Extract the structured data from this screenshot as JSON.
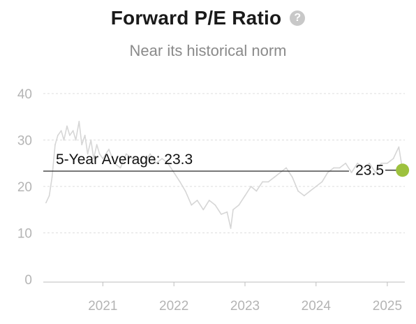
{
  "header": {
    "title": "Forward P/E Ratio",
    "help_icon": "?",
    "subtitle": "Near its historical norm"
  },
  "colors": {
    "series": "#d6d6d6",
    "average_line": "#111111",
    "current_marker": "#9dc13e",
    "grid": "#dddddd",
    "tick_text": "#b4b4b4"
  },
  "chart_data": {
    "type": "line",
    "title": "Forward P/E Ratio",
    "subtitle": "Near its historical norm",
    "xlabel": "",
    "ylabel": "",
    "ylim": [
      0,
      40
    ],
    "xlim": [
      "2020-03-01",
      "2025-04-01"
    ],
    "y_ticks": [
      "0",
      "10",
      "20",
      "30",
      "40"
    ],
    "x_ticks": [
      "2021",
      "2022",
      "2023",
      "2024",
      "2025"
    ],
    "grid": "horizontal dashed",
    "series": [
      {
        "x": [
          "2020-03-15",
          "2020-04-01",
          "2020-04-15",
          "2020-05-01",
          "2020-05-15",
          "2020-06-01",
          "2020-06-15",
          "2020-07-01",
          "2020-07-15",
          "2020-08-01",
          "2020-08-15",
          "2020-09-01",
          "2020-09-15",
          "2020-10-01",
          "2020-10-15",
          "2020-11-01",
          "2020-11-15",
          "2020-12-01",
          "2020-12-15",
          "2021-01-01",
          "2021-02-01",
          "2021-03-01",
          "2021-04-01",
          "2021-05-01",
          "2021-06-01",
          "2021-07-01",
          "2021-08-01",
          "2021-09-01",
          "2021-10-01",
          "2021-11-01",
          "2021-12-01",
          "2022-01-01",
          "2022-02-01",
          "2022-03-01",
          "2022-04-01",
          "2022-05-01",
          "2022-06-01",
          "2022-07-01",
          "2022-08-01",
          "2022-09-01",
          "2022-10-01",
          "2022-10-20",
          "2022-11-01",
          "2022-12-01",
          "2023-01-01",
          "2023-02-01",
          "2023-03-01",
          "2023-04-01",
          "2023-05-01",
          "2023-06-01",
          "2023-07-01",
          "2023-08-01",
          "2023-09-01",
          "2023-10-01",
          "2023-11-01",
          "2023-12-01",
          "2024-01-01",
          "2024-02-01",
          "2024-03-01",
          "2024-04-01",
          "2024-05-01",
          "2024-06-01",
          "2024-07-01",
          "2024-08-01",
          "2024-09-01",
          "2024-10-01",
          "2024-11-01",
          "2024-12-01",
          "2025-01-01",
          "2025-02-01",
          "2025-03-01",
          "2025-03-20"
        ],
        "values": [
          16.5,
          18,
          22,
          29,
          31,
          32,
          30,
          33,
          31,
          32,
          30,
          34,
          29,
          31,
          27,
          30,
          26,
          29,
          27,
          26,
          28,
          25,
          24,
          27,
          26,
          26,
          25,
          27,
          25,
          26,
          25,
          23,
          21,
          19,
          16,
          17,
          15,
          17,
          16,
          14,
          14.5,
          11,
          15,
          16,
          18,
          20,
          19,
          21,
          21,
          22,
          23,
          24,
          22,
          19,
          18,
          19,
          20,
          21,
          23,
          24,
          24,
          25,
          23,
          25,
          24,
          25,
          23,
          25,
          25,
          26,
          28.5,
          23.5
        ]
      }
    ],
    "average": {
      "value": 23.3,
      "label": "5-Year Average: 23.3"
    },
    "current": {
      "value": 23.5,
      "label": "23.5"
    }
  }
}
